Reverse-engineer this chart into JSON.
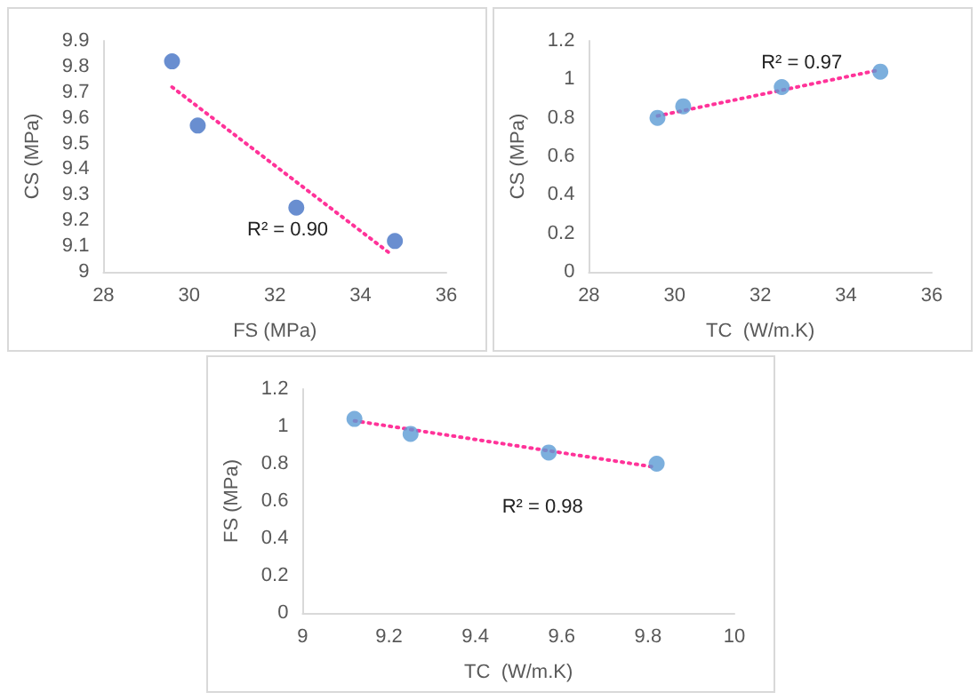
{
  "chart_data": [
    {
      "type": "scatter",
      "xlabel": "FS (MPa)",
      "ylabel": "CS (MPa)",
      "xlim": [
        28,
        36
      ],
      "xticks": [
        28,
        30,
        32,
        34,
        36
      ],
      "ylim": [
        9,
        9.9
      ],
      "yticks": [
        9,
        9.1,
        9.2,
        9.3,
        9.4,
        9.5,
        9.6,
        9.7,
        9.8,
        9.9
      ],
      "grid": false,
      "marker": "circle",
      "annotations": [
        "R² = 0.90"
      ],
      "series": [
        {
          "color": "#4472c4",
          "x": [
            29.6,
            30.2,
            32.5,
            34.8
          ],
          "values": [
            9.82,
            9.57,
            9.25,
            9.12
          ]
        },
        {
          "type": "line",
          "color": "#ff3399",
          "line_style": "dotted",
          "marker": "none",
          "x": [
            29.6,
            34.7
          ],
          "values": [
            9.72,
            9.07
          ]
        }
      ]
    },
    {
      "type": "scatter",
      "xlabel": "TC  (W/m.K)",
      "ylabel": "CS (MPa)",
      "xlim": [
        28,
        36
      ],
      "xticks": [
        28,
        30,
        32,
        34,
        36
      ],
      "ylim": [
        0,
        1.2
      ],
      "yticks": [
        0,
        0.2,
        0.4,
        0.6,
        0.8,
        1,
        1.2
      ],
      "grid": false,
      "marker": "circle",
      "annotations": [
        "R² = 0.97"
      ],
      "series": [
        {
          "color": "#5b9bd5",
          "x": [
            29.6,
            30.2,
            32.5,
            34.8
          ],
          "values": [
            0.8,
            0.86,
            0.96,
            1.04
          ]
        },
        {
          "type": "line",
          "color": "#ff3399",
          "line_style": "dotted",
          "marker": "none",
          "x": [
            29.6,
            34.8
          ],
          "values": [
            0.81,
            1.05
          ]
        }
      ]
    },
    {
      "type": "scatter",
      "xlabel": "TC  (W/m.K)",
      "ylabel": "FS (MPa)",
      "xlim": [
        9,
        10
      ],
      "xticks": [
        9,
        9.2,
        9.4,
        9.6,
        9.8,
        10
      ],
      "ylim": [
        0,
        1.2
      ],
      "yticks": [
        0,
        0.2,
        0.4,
        0.6,
        0.8,
        1,
        1.2
      ],
      "grid": false,
      "marker": "circle",
      "annotations": [
        "R² = 0.98"
      ],
      "series": [
        {
          "color": "#5b9bd5",
          "x": [
            9.12,
            9.25,
            9.57,
            9.82
          ],
          "values": [
            1.04,
            0.96,
            0.86,
            0.8
          ]
        },
        {
          "type": "line",
          "color": "#ff3399",
          "line_style": "dotted",
          "marker": "none",
          "x": [
            9.12,
            9.82
          ],
          "values": [
            1.03,
            0.78
          ]
        }
      ]
    }
  ]
}
